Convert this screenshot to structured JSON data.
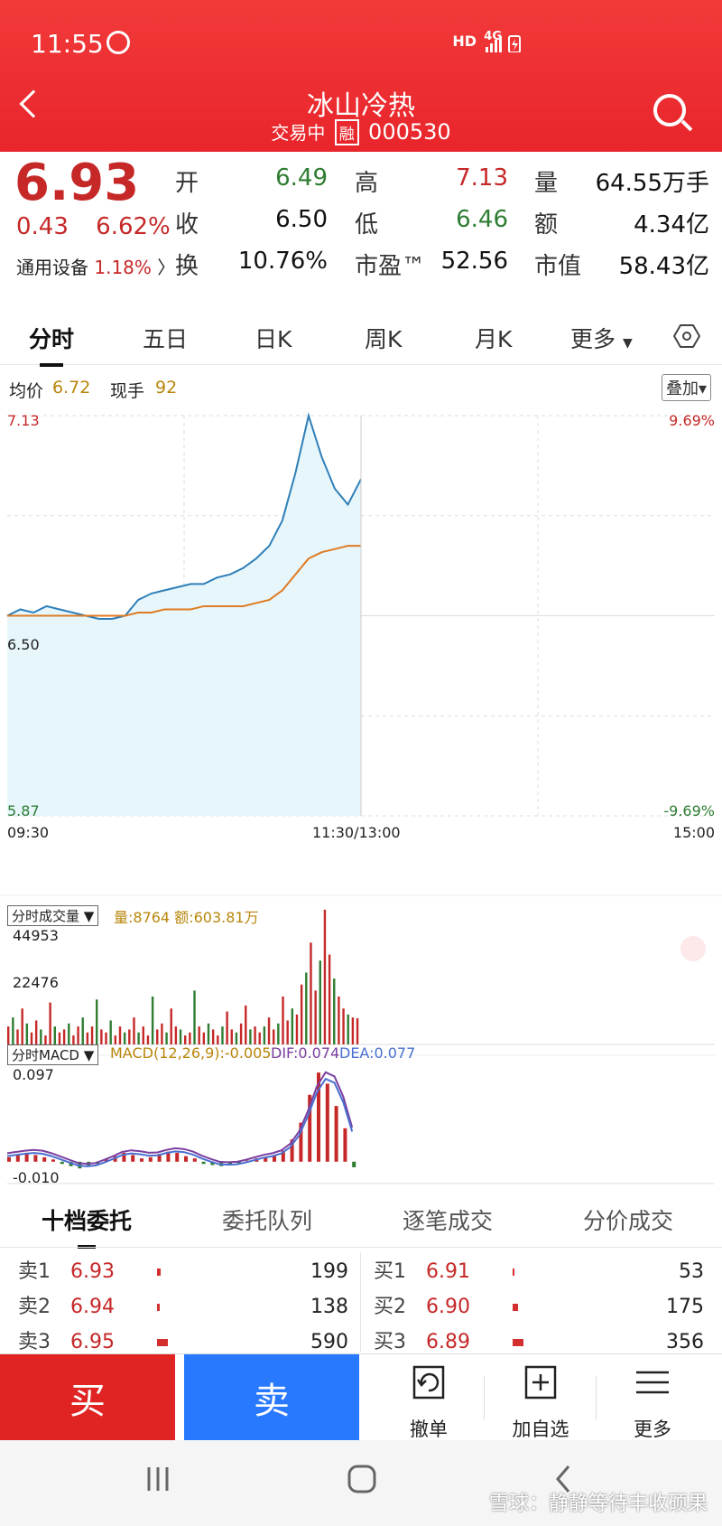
{
  "status_bar": {
    "time": "11:55",
    "network": "HD",
    "signal": "4G"
  },
  "header": {
    "title": "冰山冷热",
    "status": "交易中",
    "badge": "融",
    "code": "000530"
  },
  "quote": {
    "price": "6.93",
    "change": "0.43",
    "change_pct": "6.62%",
    "sector": "通用设备",
    "sector_pct": "1.18%",
    "fields": [
      {
        "label": "开",
        "value": "6.49",
        "color": "green"
      },
      {
        "label": "高",
        "value": "7.13",
        "color": "red"
      },
      {
        "label": "量",
        "value": "64.55万手",
        "color": "dark"
      },
      {
        "label": "收",
        "value": "6.50",
        "color": "dark"
      },
      {
        "label": "低",
        "value": "6.46",
        "color": "green"
      },
      {
        "label": "额",
        "value": "4.34亿",
        "color": "dark"
      },
      {
        "label": "换",
        "value": "10.76%",
        "color": "dark"
      },
      {
        "label": "市盈™",
        "value": "52.56",
        "color": "dark"
      },
      {
        "label": "市值",
        "value": "58.43亿",
        "color": "dark"
      }
    ]
  },
  "kline_tabs": [
    "分时",
    "五日",
    "日K",
    "周K",
    "月K",
    "更多"
  ],
  "avg": {
    "avg_label": "均价",
    "avg_value": "6.72",
    "now_label": "现手",
    "now_value": "92",
    "overlay": "叠加"
  },
  "chart_data": [
    {
      "type": "line",
      "y_left_ticks": [
        "7.13",
        "6.50",
        "5.87"
      ],
      "y_right_ticks": [
        "9.69%",
        "-9.69%"
      ],
      "x_ticks": [
        "09:30",
        "11:30/13:00",
        "15:00"
      ],
      "ylim": [
        5.87,
        7.13
      ],
      "series": [
        {
          "values": [
            6.5,
            6.52,
            6.51,
            6.53,
            6.52,
            6.51,
            6.5,
            6.49,
            6.49,
            6.5,
            6.55,
            6.57,
            6.58,
            6.59,
            6.6,
            6.6,
            6.62,
            6.63,
            6.65,
            6.68,
            6.72,
            6.8,
            6.95,
            7.13,
            7.0,
            6.9,
            6.85,
            6.93
          ]
        },
        {
          "values": [
            6.5,
            6.5,
            6.5,
            6.5,
            6.5,
            6.5,
            6.5,
            6.5,
            6.5,
            6.5,
            6.51,
            6.51,
            6.52,
            6.52,
            6.52,
            6.53,
            6.53,
            6.53,
            6.53,
            6.54,
            6.55,
            6.58,
            6.63,
            6.68,
            6.7,
            6.71,
            6.72,
            6.72
          ]
        }
      ]
    },
    {
      "type": "bar",
      "title": "分时成交量",
      "info": "量:8764 额:603.81万",
      "y_ticks": [
        "44953",
        "22476"
      ],
      "ylim": [
        0,
        44953
      ],
      "values": [
        6000,
        9000,
        5000,
        12000,
        7000,
        4000,
        8000,
        5000,
        3000,
        14000,
        6000,
        4000,
        5000,
        7000,
        3000,
        6000,
        9000,
        4000,
        6000,
        15000,
        5000,
        4000,
        8000,
        3000,
        6000,
        4000,
        5000,
        9000,
        4000,
        6000,
        3000,
        16000,
        5000,
        7000,
        4000,
        12000,
        6000,
        5000,
        3000,
        4000,
        18000,
        6000,
        4000,
        7000,
        5000,
        3000,
        6000,
        11000,
        5000,
        4000,
        7000,
        13000,
        5000,
        6000,
        4000,
        6000,
        9000,
        5000,
        7000,
        16000,
        8000,
        12000,
        10000,
        20000,
        24000,
        34000,
        18000,
        28000,
        45000,
        30000,
        22000,
        16000,
        12000,
        10000,
        9000,
        8764
      ]
    },
    {
      "type": "bar",
      "title": "分时MACD",
      "info": "MACD(12,26,9):-0.005",
      "dif": "DIF:0.074",
      "dea": "DEA:0.077",
      "y_ticks": [
        "0.097",
        "-0.010"
      ],
      "ylim": [
        -0.01,
        0.097
      ],
      "values": [
        0.004,
        0.006,
        0.008,
        0.006,
        0.004,
        0.002,
        -0.002,
        -0.004,
        -0.006,
        -0.004,
        -0.002,
        0.002,
        0.005,
        0.008,
        0.006,
        0.003,
        0.004,
        0.007,
        0.009,
        0.008,
        0.005,
        0.003,
        -0.002,
        -0.003,
        -0.004,
        -0.003,
        -0.002,
        0.001,
        0.003,
        0.004,
        0.005,
        0.01,
        0.02,
        0.035,
        0.06,
        0.08,
        0.07,
        0.05,
        0.03,
        -0.005
      ]
    }
  ],
  "order_book": {
    "tabs": [
      "十档委托",
      "委托队列",
      "逐笔成交",
      "分价成交"
    ],
    "asks": [
      {
        "level": "卖1",
        "price": "6.93",
        "volume": "199",
        "ratio": 0.34
      },
      {
        "level": "卖2",
        "price": "6.94",
        "volume": "138",
        "ratio": 0.23
      },
      {
        "level": "卖3",
        "price": "6.95",
        "volume": "590",
        "ratio": 1.0
      }
    ],
    "bids": [
      {
        "level": "买1",
        "price": "6.91",
        "volume": "53",
        "ratio": 0.15
      },
      {
        "level": "买2",
        "price": "6.90",
        "volume": "175",
        "ratio": 0.49
      },
      {
        "level": "买3",
        "price": "6.89",
        "volume": "356",
        "ratio": 1.0
      }
    ]
  },
  "trade_bar": {
    "buy": "买",
    "sell": "卖",
    "cancel": "撤单",
    "add_watch": "加自选",
    "more": "更多"
  },
  "watermark": "雪球：静静等待丰收硕果"
}
